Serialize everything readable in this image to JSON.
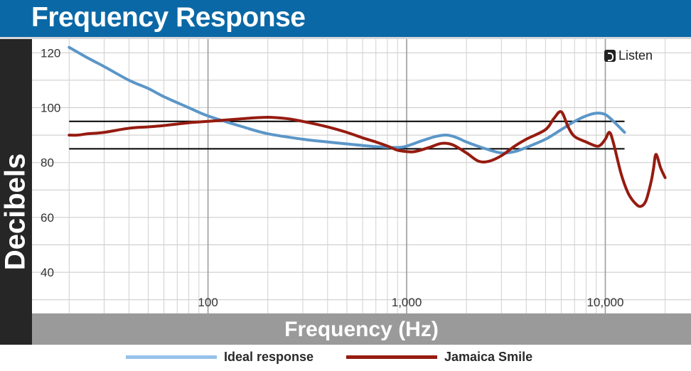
{
  "header": {
    "title": "Frequency Response"
  },
  "axes": {
    "ylabel": "Decibels",
    "xlabel": "Frequency (Hz)"
  },
  "brand": {
    "name": "Listen"
  },
  "colors": {
    "ideal": "#5b96c8",
    "device": "#961b10",
    "band": "#000000",
    "legend_ideal": "#96c2ea"
  },
  "legend": [
    {
      "name": "Ideal response"
    },
    {
      "name": "Jamaica Smile"
    }
  ],
  "chart_data": {
    "type": "line",
    "title": "Frequency Response",
    "xlabel": "Frequency (Hz)",
    "ylabel": "Decibels",
    "xscale": "log",
    "xlim": [
      13,
      27000
    ],
    "ylim": [
      25,
      125
    ],
    "xticks": [
      100,
      1000,
      10000
    ],
    "xtick_labels": [
      "100",
      "1,000",
      "10,000"
    ],
    "yticks": [
      40,
      60,
      80,
      100,
      120
    ],
    "ytick_labels": [
      "40",
      "60",
      "80",
      "100",
      "120"
    ],
    "grid": true,
    "legend_position": "bottom",
    "reference_lines": [
      {
        "y": 95,
        "x_range": [
          20,
          12500
        ]
      },
      {
        "y": 85,
        "x_range": [
          20,
          12500
        ]
      }
    ],
    "series": [
      {
        "name": "Ideal response",
        "x": [
          20,
          25,
          30,
          40,
          50,
          60,
          80,
          100,
          150,
          200,
          300,
          400,
          500,
          700,
          900,
          1000,
          1200,
          1400,
          1600,
          1800,
          2000,
          2500,
          3000,
          3500,
          4000,
          5000,
          6000,
          7000,
          8000,
          9000,
          10000,
          11000,
          12500
        ],
        "y": [
          122,
          118,
          115,
          110,
          107,
          104,
          100,
          97,
          93,
          90.5,
          88.5,
          87.5,
          86.8,
          85.8,
          85.5,
          86,
          88,
          89.5,
          90,
          89,
          87.5,
          85,
          83.5,
          84,
          85.5,
          88.5,
          92,
          95,
          97,
          98,
          97.5,
          95,
          91
        ]
      },
      {
        "name": "Jamaica Smile",
        "x": [
          20,
          22,
          25,
          30,
          40,
          50,
          60,
          80,
          100,
          150,
          200,
          250,
          300,
          400,
          500,
          600,
          700,
          800,
          900,
          1000,
          1100,
          1300,
          1500,
          1700,
          2000,
          2300,
          2600,
          3000,
          3500,
          4000,
          5000,
          5500,
          6000,
          6500,
          7000,
          8000,
          9000,
          9500,
          10000,
          10500,
          11000,
          12000,
          13000,
          14000,
          15000,
          16000,
          17000,
          17500,
          18000,
          19000,
          20000
        ],
        "y": [
          90,
          90,
          90.5,
          91,
          92.5,
          93,
          93.5,
          94.5,
          95,
          96,
          96.5,
          96,
          95,
          93,
          91,
          89,
          87.5,
          86,
          84.5,
          84,
          84,
          85.5,
          87,
          86.5,
          83.5,
          80.5,
          80.5,
          82.5,
          86,
          88.5,
          92,
          96,
          98.5,
          93,
          89.5,
          87.5,
          86,
          86.5,
          88.5,
          91,
          87,
          76,
          69,
          65.5,
          64,
          66,
          73,
          78,
          83,
          78,
          74.5
        ]
      }
    ]
  }
}
